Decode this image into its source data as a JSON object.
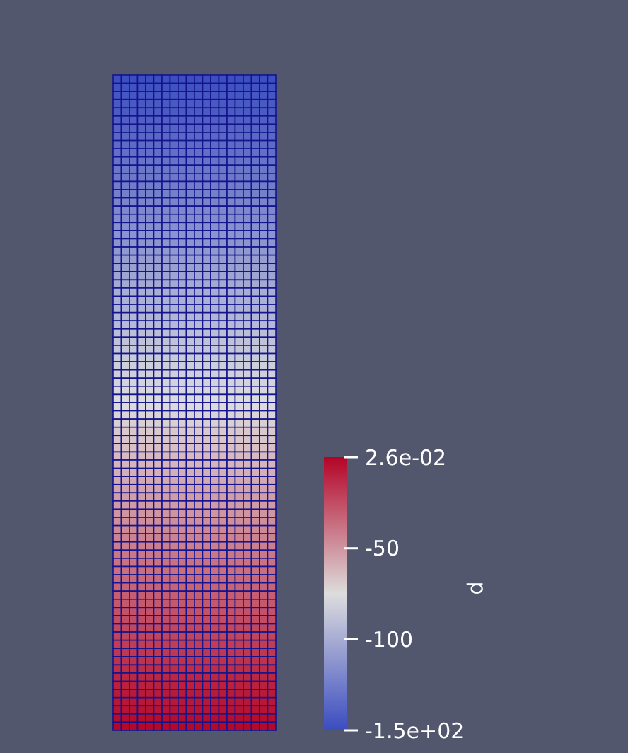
{
  "chart_data": {
    "type": "heatmap",
    "clabel": "p",
    "categories": [
      null,
      null,
      null,
      null,
      null,
      null,
      null,
      null,
      null,
      null,
      null,
      null,
      null,
      null,
      null,
      null,
      null,
      null,
      null,
      null
    ],
    "y_categories": [
      null,
      null,
      null,
      null,
      null,
      null,
      null,
      null,
      null,
      null,
      null,
      null,
      null,
      null,
      null,
      null,
      null,
      null,
      null,
      null,
      null,
      null,
      null,
      null,
      null,
      null,
      null,
      null,
      null,
      null,
      null,
      null,
      null,
      null,
      null,
      null,
      null,
      null,
      null,
      null,
      null,
      null,
      null,
      null,
      null,
      null,
      null,
      null,
      null,
      null,
      null,
      null,
      null,
      null,
      null,
      null,
      null,
      null,
      null,
      null,
      null,
      null,
      null,
      null,
      null,
      null,
      null,
      null,
      null,
      null,
      null,
      null,
      null,
      null,
      null,
      null,
      null,
      null,
      null,
      null
    ],
    "clim": [
      -150,
      0.026
    ],
    "cticks": [
      {
        "value": -150,
        "label": "-1.5e+02"
      },
      -100,
      -50,
      {
        "value": 0.026,
        "label": "2.6e-02"
      }
    ],
    "cells": [
      [
        -149,
        -149,
        -149,
        -149,
        -149,
        -149,
        -149,
        -149,
        -149,
        -149,
        -149,
        -149,
        -149,
        -149,
        -149,
        -149,
        -149,
        -149,
        -149,
        -149
      ],
      [
        -147,
        -147,
        -147,
        -147,
        -147,
        -147,
        -147,
        -147,
        -147,
        -147,
        -147,
        -147,
        -147,
        -147,
        -147,
        -147,
        -147,
        -147,
        -147,
        -147
      ],
      [
        -145,
        -145,
        -145,
        -145,
        -145,
        -145,
        -145,
        -145,
        -145,
        -145,
        -145,
        -145,
        -145,
        -145,
        -145,
        -145,
        -145,
        -145,
        -145,
        -145
      ],
      [
        -143,
        -143,
        -143,
        -143,
        -143,
        -143,
        -143,
        -143,
        -143,
        -143,
        -143,
        -143,
        -143,
        -143,
        -143,
        -143,
        -143,
        -143,
        -143,
        -143
      ],
      [
        -142,
        -142,
        -142,
        -142,
        -142,
        -142,
        -142,
        -142,
        -142,
        -142,
        -142,
        -142,
        -142,
        -142,
        -142,
        -142,
        -142,
        -142,
        -142,
        -142
      ],
      [
        -140,
        -140,
        -140,
        -140,
        -140,
        -140,
        -140,
        -140,
        -140,
        -140,
        -140,
        -140,
        -140,
        -140,
        -140,
        -140,
        -140,
        -140,
        -140,
        -140
      ],
      [
        -138,
        -138,
        -138,
        -138,
        -138,
        -138,
        -138,
        -138,
        -138,
        -138,
        -138,
        -138,
        -138,
        -138,
        -138,
        -138,
        -138,
        -138,
        -138,
        -138
      ],
      [
        -136,
        -136,
        -136,
        -136,
        -136,
        -136,
        -136,
        -136,
        -136,
        -136,
        -136,
        -136,
        -136,
        -136,
        -136,
        -136,
        -136,
        -136,
        -136,
        -136
      ],
      [
        -134,
        -134,
        -134,
        -134,
        -134,
        -134,
        -134,
        -134,
        -134,
        -134,
        -134,
        -134,
        -134,
        -134,
        -134,
        -134,
        -134,
        -134,
        -134,
        -134
      ],
      [
        -132,
        -132,
        -132,
        -132,
        -132,
        -132,
        -132,
        -132,
        -132,
        -132,
        -132,
        -132,
        -132,
        -132,
        -132,
        -132,
        -132,
        -132,
        -132,
        -132
      ],
      [
        -130,
        -130,
        -130,
        -130,
        -130,
        -130,
        -130,
        -130,
        -130,
        -130,
        -130,
        -130,
        -130,
        -130,
        -130,
        -130,
        -130,
        -130,
        -130,
        -130
      ],
      [
        -128,
        -128,
        -128,
        -128,
        -128,
        -128,
        -128,
        -128,
        -128,
        -128,
        -128,
        -128,
        -128,
        -128,
        -128,
        -128,
        -128,
        -128,
        -128,
        -128
      ],
      [
        -127,
        -127,
        -127,
        -127,
        -127,
        -127,
        -127,
        -127,
        -127,
        -127,
        -127,
        -127,
        -127,
        -127,
        -127,
        -127,
        -127,
        -127,
        -127,
        -127
      ],
      [
        -125,
        -125,
        -125,
        -125,
        -125,
        -125,
        -125,
        -125,
        -125,
        -125,
        -125,
        -125,
        -125,
        -125,
        -125,
        -125,
        -125,
        -125,
        -125,
        -125
      ],
      [
        -123,
        -123,
        -123,
        -123,
        -123,
        -123,
        -123,
        -123,
        -123,
        -123,
        -123,
        -123,
        -123,
        -123,
        -123,
        -123,
        -123,
        -123,
        -123,
        -123
      ],
      [
        -121,
        -121,
        -121,
        -121,
        -121,
        -121,
        -121,
        -121,
        -121,
        -121,
        -121,
        -121,
        -121,
        -121,
        -121,
        -121,
        -121,
        -121,
        -121,
        -121
      ],
      [
        -119,
        -119,
        -119,
        -119,
        -119,
        -119,
        -119,
        -119,
        -119,
        -119,
        -119,
        -119,
        -119,
        -119,
        -119,
        -119,
        -119,
        -119,
        -119,
        -119
      ],
      [
        -117,
        -117,
        -117,
        -117,
        -117,
        -117,
        -117,
        -117,
        -117,
        -117,
        -117,
        -117,
        -117,
        -117,
        -117,
        -117,
        -117,
        -117,
        -117,
        -117
      ],
      [
        -115,
        -115,
        -115,
        -115,
        -115,
        -115,
        -115,
        -115,
        -115,
        -115,
        -115,
        -115,
        -115,
        -115,
        -115,
        -115,
        -115,
        -115,
        -115,
        -115
      ],
      [
        -113,
        -113,
        -113,
        -113,
        -113,
        -113,
        -113,
        -113,
        -113,
        -113,
        -113,
        -113,
        -113,
        -113,
        -113,
        -113,
        -113,
        -113,
        -113,
        -113
      ],
      [
        -112,
        -112,
        -112,
        -112,
        -112,
        -112,
        -112,
        -112,
        -112,
        -112,
        -112,
        -112,
        -112,
        -112,
        -112,
        -112,
        -112,
        -112,
        -112,
        -112
      ],
      [
        -110,
        -110,
        -110,
        -110,
        -110,
        -110,
        -110,
        -110,
        -110,
        -110,
        -110,
        -110,
        -110,
        -110,
        -110,
        -110,
        -110,
        -110,
        -110,
        -110
      ],
      [
        -108,
        -108,
        -108,
        -108,
        -108,
        -108,
        -108,
        -108,
        -108,
        -108,
        -108,
        -108,
        -108,
        -108,
        -108,
        -108,
        -108,
        -108,
        -108,
        -108
      ],
      [
        -106,
        -106,
        -106,
        -106,
        -106,
        -106,
        -106,
        -106,
        -106,
        -106,
        -106,
        -106,
        -106,
        -106,
        -106,
        -106,
        -106,
        -106,
        -106,
        -106
      ],
      [
        -104,
        -104,
        -104,
        -104,
        -104,
        -104,
        -104,
        -104,
        -104,
        -104,
        -104,
        -104,
        -104,
        -104,
        -104,
        -104,
        -104,
        -104,
        -104,
        -104
      ],
      [
        -102,
        -102,
        -102,
        -102,
        -102,
        -102,
        -102,
        -102,
        -102,
        -102,
        -102,
        -102,
        -102,
        -102,
        -102,
        -102,
        -102,
        -102,
        -102,
        -102
      ],
      [
        -100,
        -100,
        -100,
        -100,
        -100,
        -100,
        -100,
        -100,
        -100,
        -100,
        -100,
        -100,
        -100,
        -100,
        -100,
        -100,
        -100,
        -100,
        -100,
        -100
      ],
      [
        -98,
        -98,
        -98,
        -98,
        -98,
        -98,
        -98,
        -98,
        -98,
        -98,
        -98,
        -98,
        -98,
        -98,
        -98,
        -98,
        -98,
        -98,
        -98,
        -98
      ],
      [
        -97,
        -97,
        -97,
        -97,
        -97,
        -97,
        -97,
        -97,
        -97,
        -97,
        -97,
        -97,
        -97,
        -97,
        -97,
        -97,
        -97,
        -97,
        -97,
        -97
      ],
      [
        -95,
        -95,
        -95,
        -95,
        -95,
        -95,
        -95,
        -95,
        -95,
        -95,
        -95,
        -95,
        -95,
        -95,
        -95,
        -95,
        -95,
        -95,
        -95,
        -95
      ],
      [
        -93,
        -93,
        -93,
        -93,
        -93,
        -93,
        -93,
        -93,
        -93,
        -93,
        -93,
        -93,
        -93,
        -93,
        -93,
        -93,
        -93,
        -93,
        -93,
        -93
      ],
      [
        -91,
        -91,
        -91,
        -91,
        -91,
        -91,
        -91,
        -91,
        -91,
        -91,
        -91,
        -91,
        -91,
        -91,
        -91,
        -91,
        -91,
        -91,
        -91,
        -91
      ],
      [
        -89,
        -89,
        -89,
        -89,
        -89,
        -89,
        -89,
        -89,
        -89,
        -89,
        -89,
        -89,
        -89,
        -89,
        -89,
        -89,
        -89,
        -89,
        -89,
        -89
      ],
      [
        -87,
        -87,
        -87,
        -87,
        -87,
        -87,
        -87,
        -87,
        -87,
        -87,
        -87,
        -87,
        -87,
        -87,
        -87,
        -87,
        -87,
        -87,
        -87,
        -87
      ],
      [
        -85,
        -85,
        -85,
        -85,
        -85,
        -85,
        -85,
        -85,
        -85,
        -85,
        -85,
        -85,
        -85,
        -85,
        -85,
        -85,
        -85,
        -85,
        -85,
        -85
      ],
      [
        -83,
        -83,
        -83,
        -83,
        -83,
        -83,
        -83,
        -83,
        -83,
        -83,
        -83,
        -83,
        -83,
        -83,
        -83,
        -83,
        -83,
        -83,
        -83,
        -83
      ],
      [
        -82,
        -82,
        -82,
        -82,
        -82,
        -82,
        -82,
        -82,
        -82,
        -82,
        -82,
        -82,
        -82,
        -82,
        -82,
        -82,
        -82,
        -82,
        -82,
        -82
      ],
      [
        -80,
        -80,
        -80,
        -80,
        -80,
        -80,
        -80,
        -80,
        -80,
        -80,
        -80,
        -80,
        -80,
        -80,
        -80,
        -80,
        -80,
        -80,
        -80,
        -80
      ],
      [
        -78,
        -78,
        -78,
        -78,
        -78,
        -78,
        -78,
        -78,
        -78,
        -78,
        -78,
        -78,
        -78,
        -78,
        -78,
        -78,
        -78,
        -78,
        -78,
        -78
      ],
      [
        -76,
        -76,
        -76,
        -76,
        -76,
        -76,
        -76,
        -76,
        -76,
        -76,
        -76,
        -76,
        -76,
        -76,
        -76,
        -76,
        -76,
        -76,
        -76,
        -76
      ],
      [
        -74,
        -74,
        -74,
        -74,
        -74,
        -74,
        -74,
        -74,
        -74,
        -74,
        -74,
        -74,
        -74,
        -74,
        -74,
        -74,
        -74,
        -74,
        -74,
        -74
      ],
      [
        -72,
        -72,
        -72,
        -72,
        -72,
        -72,
        -72,
        -72,
        -72,
        -72,
        -72,
        -72,
        -72,
        -72,
        -72,
        -72,
        -72,
        -72,
        -72,
        -72
      ],
      [
        -70,
        -70,
        -70,
        -70,
        -70,
        -70,
        -70,
        -70,
        -70,
        -70,
        -70,
        -70,
        -70,
        -70,
        -70,
        -70,
        -70,
        -70,
        -70,
        -70
      ],
      [
        -68,
        -68,
        -68,
        -68,
        -68,
        -68,
        -68,
        -68,
        -68,
        -68,
        -68,
        -68,
        -68,
        -68,
        -68,
        -68,
        -68,
        -68,
        -68,
        -68
      ],
      [
        -67,
        -67,
        -67,
        -67,
        -67,
        -67,
        -67,
        -67,
        -67,
        -67,
        -67,
        -67,
        -67,
        -67,
        -67,
        -67,
        -67,
        -67,
        -67,
        -67
      ],
      [
        -65,
        -65,
        -65,
        -65,
        -65,
        -65,
        -65,
        -65,
        -65,
        -65,
        -65,
        -65,
        -65,
        -65,
        -65,
        -65,
        -65,
        -65,
        -65,
        -65
      ],
      [
        -63,
        -63,
        -63,
        -63,
        -63,
        -63,
        -63,
        -63,
        -63,
        -63,
        -63,
        -63,
        -63,
        -63,
        -63,
        -63,
        -63,
        -63,
        -63,
        -63
      ],
      [
        -61,
        -61,
        -61,
        -61,
        -61,
        -61,
        -61,
        -61,
        -61,
        -61,
        -61,
        -61,
        -61,
        -61,
        -61,
        -61,
        -61,
        -61,
        -61,
        -61
      ],
      [
        -59,
        -59,
        -59,
        -59,
        -59,
        -59,
        -59,
        -59,
        -59,
        -59,
        -59,
        -59,
        -59,
        -59,
        -59,
        -59,
        -59,
        -59,
        -59,
        -59
      ],
      [
        -57,
        -57,
        -57,
        -57,
        -57,
        -57,
        -57,
        -57,
        -57,
        -57,
        -57,
        -57,
        -57,
        -57,
        -57,
        -57,
        -57,
        -57,
        -57,
        -57
      ],
      [
        -55,
        -55,
        -55,
        -55,
        -55,
        -55,
        -55,
        -55,
        -55,
        -55,
        -55,
        -55,
        -55,
        -55,
        -55,
        -55,
        -55,
        -55,
        -55,
        -55
      ],
      [
        -53,
        -53,
        -53,
        -53,
        -53,
        -53,
        -53,
        -53,
        -53,
        -53,
        -53,
        -53,
        -53,
        -53,
        -53,
        -53,
        -53,
        -53,
        -53,
        -53
      ],
      [
        -52,
        -52,
        -52,
        -52,
        -52,
        -52,
        -52,
        -52,
        -52,
        -52,
        -52,
        -52,
        -52,
        -52,
        -52,
        -52,
        -52,
        -52,
        -52,
        -52
      ],
      [
        -50,
        -50,
        -50,
        -50,
        -50,
        -50,
        -50,
        -50,
        -50,
        -50,
        -50,
        -50,
        -50,
        -50,
        -50,
        -50,
        -50,
        -50,
        -50,
        -50
      ],
      [
        -48,
        -48,
        -48,
        -48,
        -48,
        -48,
        -48,
        -48,
        -48,
        -48,
        -48,
        -48,
        -48,
        -48,
        -48,
        -48,
        -48,
        -48,
        -48,
        -48
      ],
      [
        -46,
        -46,
        -46,
        -46,
        -46,
        -46,
        -46,
        -46,
        -46,
        -46,
        -46,
        -46,
        -46,
        -46,
        -46,
        -46,
        -46,
        -46,
        -46,
        -46
      ],
      [
        -44,
        -44,
        -44,
        -44,
        -44,
        -44,
        -44,
        -44,
        -44,
        -44,
        -44,
        -44,
        -44,
        -44,
        -44,
        -44,
        -44,
        -44,
        -44,
        -44
      ],
      [
        -42,
        -42,
        -42,
        -42,
        -42,
        -42,
        -42,
        -42,
        -42,
        -42,
        -42,
        -42,
        -42,
        -42,
        -42,
        -42,
        -42,
        -42,
        -42,
        -42
      ],
      [
        -40,
        -40,
        -40,
        -40,
        -40,
        -40,
        -40,
        -40,
        -40,
        -40,
        -40,
        -40,
        -40,
        -40,
        -40,
        -40,
        -40,
        -40,
        -40,
        -40
      ],
      [
        -38,
        -38,
        -38,
        -38,
        -38,
        -38,
        -38,
        -38,
        -38,
        -38,
        -38,
        -38,
        -38,
        -38,
        -38,
        -38,
        -38,
        -38,
        -38,
        -38
      ],
      [
        -37,
        -37,
        -37,
        -37,
        -37,
        -37,
        -37,
        -37,
        -37,
        -37,
        -37,
        -37,
        -37,
        -37,
        -37,
        -37,
        -37,
        -37,
        -37,
        -37
      ],
      [
        -35,
        -35,
        -35,
        -35,
        -35,
        -35,
        -35,
        -35,
        -35,
        -35,
        -35,
        -35,
        -35,
        -35,
        -35,
        -35,
        -35,
        -35,
        -35,
        -35
      ],
      [
        -33,
        -33,
        -33,
        -33,
        -33,
        -33,
        -33,
        -33,
        -33,
        -33,
        -33,
        -33,
        -33,
        -33,
        -33,
        -33,
        -33,
        -33,
        -33,
        -33
      ],
      [
        -31,
        -31,
        -31,
        -31,
        -31,
        -31,
        -31,
        -31,
        -31,
        -31,
        -31,
        -31,
        -31,
        -31,
        -31,
        -31,
        -31,
        -31,
        -31,
        -31
      ],
      [
        -29,
        -29,
        -29,
        -29,
        -29,
        -29,
        -29,
        -29,
        -29,
        -29,
        -29,
        -29,
        -29,
        -29,
        -29,
        -29,
        -29,
        -29,
        -29,
        -29
      ],
      [
        -27,
        -27,
        -27,
        -27,
        -27,
        -27,
        -27,
        -27,
        -27,
        -27,
        -27,
        -27,
        -27,
        -27,
        -27,
        -27,
        -27,
        -27,
        -27,
        -27
      ],
      [
        -25,
        -25,
        -25,
        -25,
        -25,
        -25,
        -25,
        -25,
        -25,
        -25,
        -25,
        -25,
        -25,
        -25,
        -25,
        -25,
        -25,
        -25,
        -25,
        -25
      ],
      [
        -23,
        -23,
        -23,
        -23,
        -23,
        -23,
        -23,
        -23,
        -23,
        -23,
        -23,
        -23,
        -23,
        -23,
        -23,
        -23,
        -23,
        -23,
        -23,
        -23
      ],
      [
        -22,
        -22,
        -22,
        -22,
        -22,
        -22,
        -22,
        -22,
        -22,
        -22,
        -22,
        -22,
        -22,
        -22,
        -22,
        -22,
        -22,
        -22,
        -22,
        -22
      ],
      [
        -20,
        -20,
        -20,
        -20,
        -20,
        -20,
        -20,
        -20,
        -20,
        -20,
        -20,
        -20,
        -20,
        -20,
        -20,
        -20,
        -20,
        -20,
        -20,
        -20
      ],
      [
        -18,
        -18,
        -18,
        -18,
        -18,
        -18,
        -18,
        -18,
        -18,
        -18,
        -18,
        -18,
        -18,
        -18,
        -18,
        -18,
        -18,
        -18,
        -18,
        -18
      ],
      [
        -16,
        -16,
        -16,
        -16,
        -16,
        -16,
        -16,
        -16,
        -16,
        -16,
        -16,
        -16,
        -16,
        -16,
        -16,
        -16,
        -16,
        -16,
        -16,
        -16
      ],
      [
        -14,
        -14,
        -14,
        -14,
        -14,
        -14,
        -14,
        -14,
        -14,
        -14,
        -14,
        -14,
        -14,
        -14,
        -14,
        -14,
        -14,
        -14,
        -14,
        -14
      ],
      [
        -12,
        -12,
        -12,
        -12,
        -12,
        -12,
        -12,
        -12,
        -12,
        -12,
        -12,
        -12,
        -12,
        -12,
        -12,
        -12,
        -12,
        -12,
        -12,
        -12
      ],
      [
        -10,
        -10,
        -10,
        -10,
        -10,
        -10,
        -10,
        -10,
        -10,
        -10,
        -10,
        -10,
        -10,
        -10,
        -10,
        -10,
        -10,
        -10,
        -10,
        -10
      ],
      [
        -8,
        -8,
        -8,
        -8,
        -8,
        -8,
        -8,
        -8,
        -8,
        -8,
        -8,
        -8,
        -8,
        -8,
        -8,
        -8,
        -8,
        -8,
        -8,
        -8
      ],
      [
        -7,
        -7,
        -7,
        -7,
        -7,
        -7,
        -7,
        -7,
        -7,
        -7,
        -7,
        -7,
        -7,
        -7,
        -7,
        -7,
        -7,
        -7,
        -7,
        -7
      ],
      [
        -5,
        -5,
        -5,
        -5,
        -5,
        -5,
        -5,
        -5,
        -5,
        -5,
        -5,
        -5,
        -5,
        -5,
        -5,
        -5,
        -5,
        -5,
        -5,
        -5
      ],
      [
        -3,
        -3,
        -3,
        -3,
        -3,
        -3,
        -3,
        -3,
        -3,
        -3,
        -3,
        -3,
        -3,
        -3,
        -3,
        -3,
        -3,
        -3,
        -3,
        -3
      ],
      [
        -1,
        -1,
        -1,
        -1,
        -1,
        -1,
        -1,
        -1,
        -1,
        -1,
        -1,
        -1,
        -1,
        -1,
        -1,
        -1,
        -1,
        -1,
        -1,
        -1
      ]
    ]
  }
}
